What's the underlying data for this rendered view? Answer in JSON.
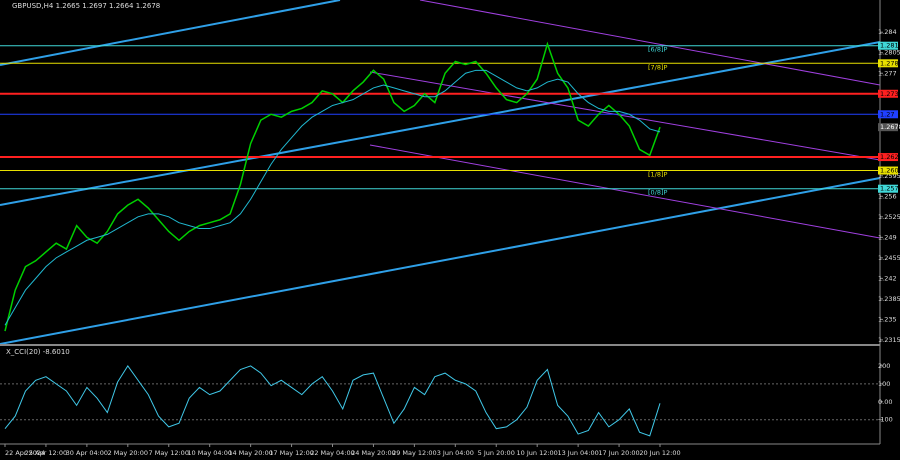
{
  "chart_data": [
    {
      "type": "line",
      "title": "GBPUSD,H4  1.2665 1.2697 1.2664 1.2678",
      "xlim": [
        0,
        64
      ],
      "xticks": [
        {
          "value": 0,
          "label": "22 Apr 2024"
        },
        {
          "value": 4,
          "label": "25 Apr 12:00"
        },
        {
          "value": 8,
          "label": "30 Apr 04:00"
        },
        {
          "value": 12,
          "label": "2 May 20:00"
        },
        {
          "value": 16,
          "label": "7 May 12:00"
        },
        {
          "value": 20,
          "label": "10 May 04:00"
        },
        {
          "value": 24,
          "label": "14 May 20:00"
        },
        {
          "value": 28,
          "label": "17 May 12:00"
        },
        {
          "value": 32,
          "label": "22 May 04:00"
        },
        {
          "value": 36,
          "label": "24 May 20:00"
        },
        {
          "value": 40,
          "label": "29 May 12:00"
        },
        {
          "value": 44,
          "label": "3 Jun 04:00"
        },
        {
          "value": 48,
          "label": "5 Jun 20:00"
        },
        {
          "value": 52,
          "label": "10 Jun 12:00"
        },
        {
          "value": 56,
          "label": "13 Jun 04:00"
        },
        {
          "value": 60,
          "label": "17 Jun 20:00"
        },
        {
          "value": 64,
          "label": "20 Jun 12:00"
        }
      ],
      "ylim": [
        1.2308,
        1.2895
      ],
      "yticks": [
        1.284,
        1.2805,
        1.277,
        1.2595,
        1.256,
        1.2525,
        1.249,
        1.2455,
        1.242,
        1.2385,
        1.235,
        1.2315
      ],
      "series": [
        {
          "color": "#00d000",
          "values": [
            1.233,
            1.24,
            1.244,
            1.245,
            1.2465,
            1.248,
            1.247,
            1.251,
            1.249,
            1.248,
            1.25,
            1.253,
            1.2545,
            1.2555,
            1.254,
            1.252,
            1.25,
            1.2485,
            1.25,
            1.251,
            1.2515,
            1.252,
            1.253,
            1.258,
            1.265,
            1.269,
            1.27,
            1.2695,
            1.2705,
            1.271,
            1.272,
            1.274,
            1.2735,
            1.272,
            1.274,
            1.2755,
            1.2775,
            1.276,
            1.272,
            1.2705,
            1.2715,
            1.2735,
            1.272,
            1.277,
            1.279,
            1.2785,
            1.279,
            1.277,
            1.2745,
            1.2725,
            1.272,
            1.2735,
            1.276,
            1.282,
            1.277,
            1.2745,
            1.269,
            1.268,
            1.27,
            1.2715,
            1.27,
            1.268,
            1.264,
            1.263,
            1.2678
          ]
        },
        {
          "color": "#20b8d0",
          "values": [
            1.234,
            1.237,
            1.24,
            1.242,
            1.244,
            1.2455,
            1.2465,
            1.2475,
            1.2485,
            1.249,
            1.2495,
            1.2505,
            1.2515,
            1.2525,
            1.253,
            1.253,
            1.2525,
            1.2515,
            1.251,
            1.2505,
            1.2505,
            1.251,
            1.2515,
            1.253,
            1.2555,
            1.2585,
            1.2615,
            1.264,
            1.266,
            1.268,
            1.2695,
            1.2705,
            1.2715,
            1.272,
            1.2725,
            1.2735,
            1.2745,
            1.275,
            1.2745,
            1.274,
            1.2735,
            1.273,
            1.273,
            1.274,
            1.2755,
            1.277,
            1.2775,
            1.2775,
            1.2765,
            1.2755,
            1.2745,
            1.274,
            1.2745,
            1.2755,
            1.276,
            1.2755,
            1.2735,
            1.272,
            1.271,
            1.2705,
            1.2705,
            1.27,
            1.269,
            1.2675,
            1.267
          ]
        }
      ],
      "levels": [
        {
          "name": "[6/8]P",
          "value": 1.2817,
          "color": "#40d8d8"
        },
        {
          "name": "[7/8]P",
          "value": 1.2787,
          "color": "#e8e000"
        },
        {
          "value": 1.2735,
          "color": "#ff2020"
        },
        {
          "value": 1.27,
          "color": "#2040ff"
        },
        {
          "value": 1.2627,
          "color": "#ff2020"
        },
        {
          "name": "[1/8]P",
          "value": 1.2604,
          "color": "#e8e000"
        },
        {
          "name": "[0/8]P",
          "value": 1.2573,
          "color": "#40d8d8"
        }
      ]
    },
    {
      "type": "line",
      "title": "X_CCI(20) -8.6010",
      "xlim": [
        0,
        64
      ],
      "ylim": [
        -230,
        300
      ],
      "yticks": [
        200,
        100,
        {
          "value": 0,
          "label": "0.00"
        },
        -100
      ],
      "series": [
        {
          "color": "#40c8e8",
          "values": [
            -150,
            -80,
            60,
            120,
            140,
            100,
            60,
            -20,
            80,
            20,
            -60,
            110,
            200,
            120,
            40,
            -80,
            -140,
            -120,
            20,
            80,
            40,
            60,
            120,
            180,
            200,
            160,
            90,
            120,
            80,
            40,
            100,
            140,
            60,
            -40,
            120,
            150,
            160,
            20,
            -120,
            -40,
            80,
            40,
            140,
            160,
            120,
            100,
            60,
            -60,
            -150,
            -140,
            -100,
            -30,
            120,
            180,
            -20,
            -80,
            -180,
            -160,
            -60,
            -140,
            -100,
            -40,
            -170,
            -190,
            -8.601
          ]
        }
      ]
    }
  ]
}
